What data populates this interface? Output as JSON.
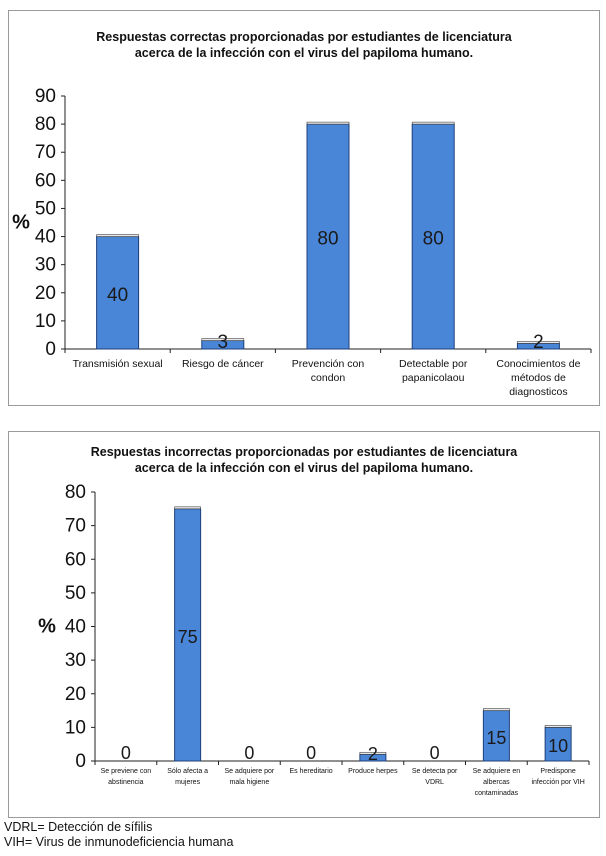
{
  "chart_data": [
    {
      "type": "bar",
      "title_lines": [
        "Respuestas correctas proporcionadas por estudiantes de licenciatura",
        "acerca de la infección con el virus del papiloma humano."
      ],
      "ylabel": "%",
      "ylim": [
        0,
        90
      ],
      "yticks": [
        "0",
        "10",
        "20",
        "30",
        "40",
        "50",
        "60",
        "70",
        "80",
        "90"
      ],
      "categories": [
        [
          "Transmisión sexual"
        ],
        [
          "Riesgo de cáncer"
        ],
        [
          "Prevención con",
          "condon"
        ],
        [
          "Detectable por",
          "papanicolaou"
        ],
        [
          "Conocimientos de",
          "métodos de",
          "diagnosticos"
        ]
      ],
      "values": [
        40,
        3,
        80,
        80,
        2
      ],
      "data_labels": [
        "40",
        "3",
        "80",
        "80",
        "2"
      ],
      "bar_color": "#4a86d8",
      "grid": false
    },
    {
      "type": "bar",
      "title_lines": [
        "Respuestas incorrectas proporcionadas por estudiantes de licenciatura",
        "acerca de la infección con el virus del papiloma humano."
      ],
      "ylabel": "%",
      "ylim": [
        0,
        80
      ],
      "yticks": [
        "0",
        "10",
        "20",
        "30",
        "40",
        "50",
        "60",
        "70",
        "80"
      ],
      "categories": [
        [
          "Se previene con",
          "abstinencia"
        ],
        [
          "Sólo afecta a",
          "mujeres"
        ],
        [
          "Se adquiere por",
          "mala higiene"
        ],
        [
          "Es hereditario"
        ],
        [
          "Produce herpes"
        ],
        [
          "Se detecta por",
          "VDRL"
        ],
        [
          "Se adquiere en",
          "albercas",
          "contaminadas"
        ],
        [
          "Predispone",
          "infección por VIH"
        ]
      ],
      "values": [
        0,
        75,
        0,
        0,
        2,
        0,
        15,
        10
      ],
      "data_labels": [
        "0",
        "75",
        "0",
        "0",
        "2",
        "0",
        "15",
        "10"
      ],
      "bar_color": "#4a86d8",
      "grid": false
    }
  ],
  "footnotes": [
    "VDRL= Detección de sífilis",
    "VIH= Virus de inmunodeficiencia humana"
  ]
}
